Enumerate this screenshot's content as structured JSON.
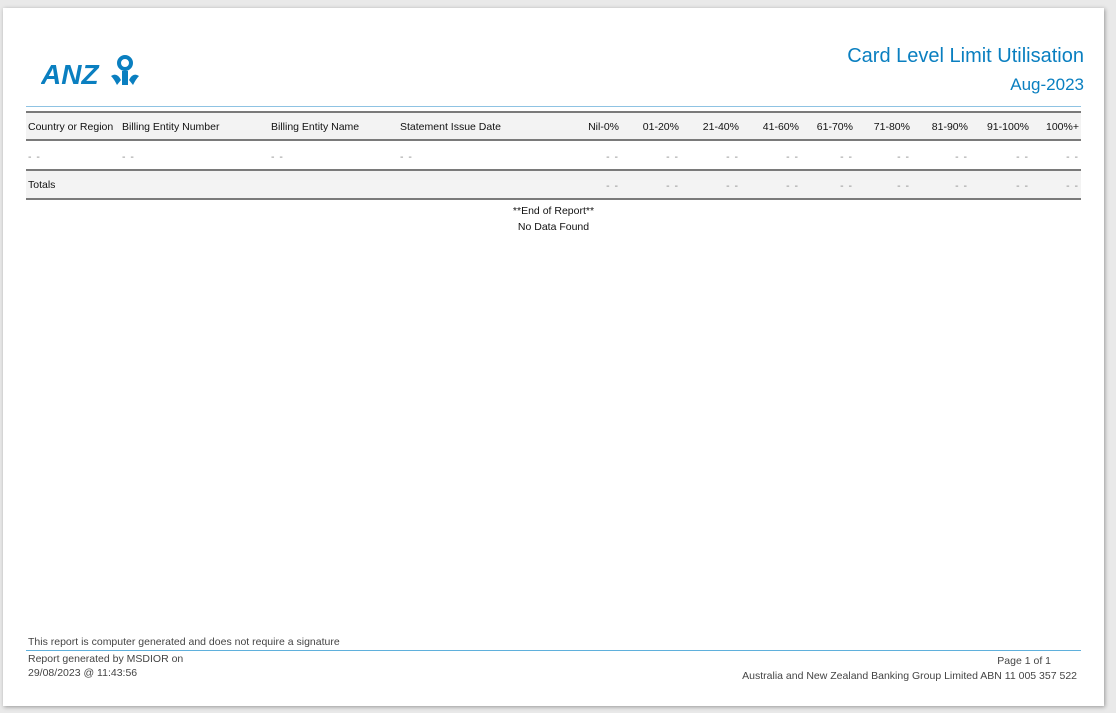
{
  "header": {
    "logo_text": "ANZ",
    "title": "Card Level Limit Utilisation",
    "period": "Aug-2023"
  },
  "table": {
    "columns": [
      "Country or Region",
      "Billing Entity Number",
      "Billing Entity Name",
      "Statement Issue Date",
      "Nil-0%",
      "01-20%",
      "21-40%",
      "41-60%",
      "61-70%",
      "71-80%",
      "81-90%",
      "91-100%",
      "100%+"
    ],
    "row": [
      "- -",
      "- -",
      "- -",
      "- -",
      "- -",
      "- -",
      "- -",
      "- -",
      "- -",
      "- -",
      "- -",
      "- -",
      "- -"
    ],
    "totals_label": "Totals",
    "totals": [
      "- -",
      "- -",
      "- -",
      "- -",
      "- -",
      "- -",
      "- -",
      "- -",
      "- -"
    ]
  },
  "end_of_report": "**End of Report**",
  "no_data": "No Data Found",
  "footer": {
    "disclaimer": "This report is computer generated and does not require a signature",
    "generated_by": "Report generated by MSDIOR  on",
    "generated_at": "29/08/2023 @ 11:43:56",
    "page": "Page 1 of 1",
    "company": "Australia and New Zealand Banking Group Limited ABN 11 005 357 522"
  },
  "colors": {
    "brand": "#0a7fc0"
  }
}
